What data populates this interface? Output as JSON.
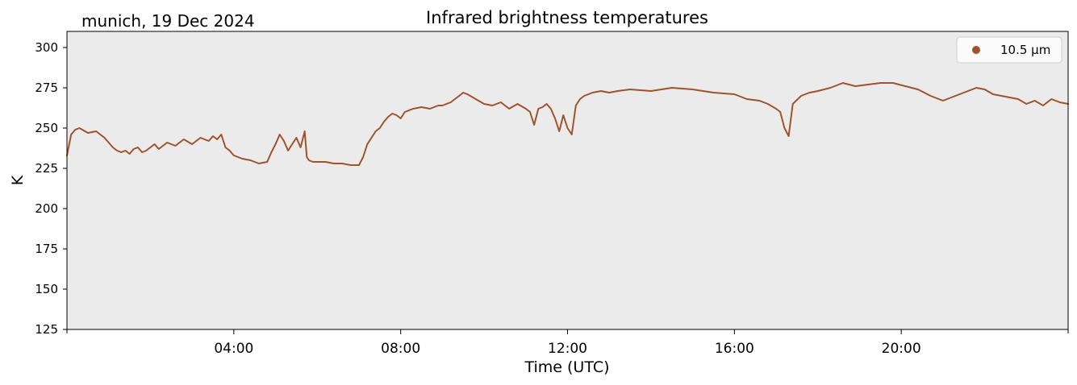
{
  "chart_data": {
    "type": "line",
    "title": "Infrared brightness temperatures",
    "subtitle": "munich, 19 Dec 2024",
    "xlabel": "Time (UTC)",
    "ylabel": "K",
    "x_unit": "hours UTC",
    "xlim": [
      0,
      24
    ],
    "ylim": [
      125,
      310
    ],
    "yticks": [
      125,
      150,
      175,
      200,
      225,
      250,
      275,
      300
    ],
    "xticks": [
      {
        "value": 4,
        "label": "04:00"
      },
      {
        "value": 8,
        "label": "08:00"
      },
      {
        "value": 12,
        "label": "12:00"
      },
      {
        "value": 16,
        "label": "16:00"
      },
      {
        "value": 20,
        "label": "20:00"
      }
    ],
    "grid": false,
    "legend_position": "top-right",
    "background_color": "#ebebeb",
    "series": [
      {
        "name": "10.5 µm",
        "color": "#a0522d",
        "x": [
          0.0,
          0.1,
          0.2,
          0.3,
          0.5,
          0.7,
          0.9,
          1.0,
          1.1,
          1.2,
          1.3,
          1.4,
          1.5,
          1.6,
          1.7,
          1.8,
          1.9,
          2.0,
          2.1,
          2.2,
          2.4,
          2.6,
          2.8,
          3.0,
          3.2,
          3.4,
          3.5,
          3.6,
          3.7,
          3.8,
          3.9,
          4.0,
          4.1,
          4.2,
          4.4,
          4.6,
          4.8,
          4.9,
          5.0,
          5.1,
          5.2,
          5.3,
          5.4,
          5.5,
          5.6,
          5.7,
          5.75,
          5.8,
          5.9,
          6.0,
          6.2,
          6.4,
          6.6,
          6.8,
          7.0,
          7.1,
          7.2,
          7.3,
          7.4,
          7.5,
          7.6,
          7.7,
          7.8,
          7.9,
          8.0,
          8.1,
          8.3,
          8.5,
          8.7,
          8.9,
          9.0,
          9.2,
          9.4,
          9.5,
          9.6,
          9.8,
          10.0,
          10.2,
          10.4,
          10.6,
          10.8,
          11.0,
          11.1,
          11.2,
          11.3,
          11.4,
          11.5,
          11.6,
          11.7,
          11.8,
          11.9,
          12.0,
          12.1,
          12.2,
          12.3,
          12.4,
          12.6,
          12.8,
          13.0,
          13.2,
          13.5,
          14.0,
          14.5,
          15.0,
          15.5,
          16.0,
          16.3,
          16.6,
          16.8,
          17.0,
          17.1,
          17.2,
          17.3,
          17.4,
          17.6,
          17.8,
          18.0,
          18.3,
          18.6,
          18.9,
          19.2,
          19.5,
          19.8,
          20.1,
          20.4,
          20.7,
          21.0,
          21.2,
          21.4,
          21.6,
          21.8,
          22.0,
          22.2,
          22.4,
          22.6,
          22.8,
          23.0,
          23.2,
          23.4,
          23.6,
          23.8,
          24.0
        ],
        "y": [
          233,
          246,
          249,
          250,
          247,
          248,
          244,
          241,
          238,
          236,
          235,
          236,
          234,
          237,
          238,
          235,
          236,
          238,
          240,
          237,
          241,
          239,
          243,
          240,
          244,
          242,
          245,
          243,
          246,
          238,
          236,
          233,
          232,
          231,
          230,
          228,
          229,
          235,
          240,
          246,
          242,
          236,
          240,
          244,
          238,
          248,
          232,
          230,
          229,
          229,
          229,
          228,
          228,
          227,
          227,
          232,
          240,
          244,
          248,
          250,
          254,
          257,
          259,
          258,
          256,
          260,
          262,
          263,
          262,
          264,
          264,
          266,
          270,
          272,
          271,
          268,
          265,
          264,
          266,
          262,
          265,
          262,
          260,
          252,
          262,
          263,
          265,
          262,
          256,
          248,
          258,
          250,
          246,
          264,
          268,
          270,
          272,
          273,
          272,
          273,
          274,
          273,
          275,
          274,
          272,
          271,
          268,
          267,
          265,
          262,
          260,
          250,
          245,
          265,
          270,
          272,
          273,
          275,
          278,
          276,
          277,
          278,
          278,
          276,
          274,
          270,
          267,
          269,
          271,
          273,
          275,
          274,
          271,
          270,
          269,
          268,
          265,
          267,
          264,
          268,
          266,
          265
        ]
      }
    ]
  }
}
